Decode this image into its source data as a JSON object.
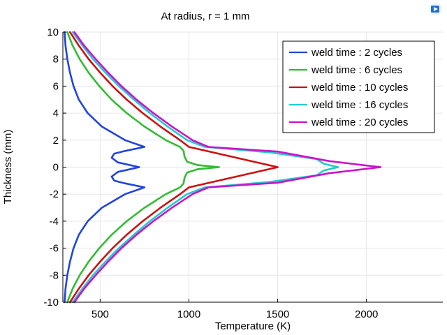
{
  "chart_data": {
    "type": "line",
    "title": "At radius, r = 1 mm",
    "xlabel": "Temperature (K)",
    "ylabel": "Thickness (mm)",
    "xlim": [
      290,
      2430
    ],
    "ylim": [
      -10,
      10
    ],
    "xticks": [
      500,
      1000,
      1500,
      2000
    ],
    "yticks": [
      -10,
      -8,
      -6,
      -4,
      -2,
      0,
      2,
      4,
      6,
      8,
      10
    ],
    "grid": true,
    "legend_position": "top-right",
    "series": [
      {
        "name": "weld time : 2 cycles",
        "color": "#2244dd",
        "points": [
          [
            300,
            10
          ],
          [
            305,
            9
          ],
          [
            315,
            8
          ],
          [
            330,
            7
          ],
          [
            350,
            6
          ],
          [
            380,
            5
          ],
          [
            430,
            4
          ],
          [
            510,
            3
          ],
          [
            640,
            2
          ],
          [
            750,
            1.5
          ],
          [
            640,
            1.2
          ],
          [
            580,
            1
          ],
          [
            565,
            0.7
          ],
          [
            600,
            0.35
          ],
          [
            720,
            0
          ],
          [
            600,
            -0.35
          ],
          [
            565,
            -0.7
          ],
          [
            580,
            -1
          ],
          [
            640,
            -1.2
          ],
          [
            750,
            -1.5
          ],
          [
            640,
            -2
          ],
          [
            510,
            -3
          ],
          [
            430,
            -4
          ],
          [
            380,
            -5
          ],
          [
            350,
            -6
          ],
          [
            330,
            -7
          ],
          [
            315,
            -8
          ],
          [
            305,
            -9
          ],
          [
            300,
            -10
          ]
        ]
      },
      {
        "name": "weld time : 6 cycles",
        "color": "#33bb33",
        "points": [
          [
            315,
            10
          ],
          [
            345,
            9
          ],
          [
            385,
            8
          ],
          [
            435,
            7
          ],
          [
            495,
            6
          ],
          [
            565,
            5
          ],
          [
            650,
            4
          ],
          [
            750,
            3
          ],
          [
            870,
            2
          ],
          [
            950,
            1.5
          ],
          [
            970,
            1.2
          ],
          [
            975,
            0.8
          ],
          [
            990,
            0.4
          ],
          [
            1050,
            0.15
          ],
          [
            1170,
            0
          ],
          [
            1050,
            -0.15
          ],
          [
            990,
            -0.4
          ],
          [
            975,
            -0.8
          ],
          [
            970,
            -1.2
          ],
          [
            950,
            -1.5
          ],
          [
            870,
            -2
          ],
          [
            750,
            -3
          ],
          [
            650,
            -4
          ],
          [
            565,
            -5
          ],
          [
            495,
            -6
          ],
          [
            435,
            -7
          ],
          [
            385,
            -8
          ],
          [
            345,
            -9
          ],
          [
            315,
            -10
          ]
        ]
      },
      {
        "name": "weld time : 10 cycles",
        "color": "#cc1111",
        "points": [
          [
            330,
            10
          ],
          [
            380,
            9
          ],
          [
            435,
            8
          ],
          [
            500,
            7
          ],
          [
            570,
            6
          ],
          [
            650,
            5
          ],
          [
            740,
            4
          ],
          [
            840,
            3
          ],
          [
            950,
            2
          ],
          [
            1000,
            1.5
          ],
          [
            1250,
            0.75
          ],
          [
            1500,
            0
          ],
          [
            1250,
            -0.75
          ],
          [
            1000,
            -1.5
          ],
          [
            950,
            -2
          ],
          [
            840,
            -3
          ],
          [
            740,
            -4
          ],
          [
            650,
            -5
          ],
          [
            570,
            -6
          ],
          [
            500,
            -7
          ],
          [
            435,
            -8
          ],
          [
            380,
            -9
          ],
          [
            330,
            -10
          ]
        ]
      },
      {
        "name": "weld time : 16 cycles",
        "color": "#22cccc",
        "points": [
          [
            345,
            10
          ],
          [
            400,
            9
          ],
          [
            460,
            8
          ],
          [
            530,
            7
          ],
          [
            605,
            6
          ],
          [
            690,
            5
          ],
          [
            780,
            4
          ],
          [
            880,
            3
          ],
          [
            990,
            2
          ],
          [
            1090,
            1.5
          ],
          [
            1450,
            1.1
          ],
          [
            1720,
            0.6
          ],
          [
            1760,
            0.25
          ],
          [
            1840,
            0
          ],
          [
            1760,
            -0.25
          ],
          [
            1720,
            -0.6
          ],
          [
            1450,
            -1.1
          ],
          [
            1090,
            -1.5
          ],
          [
            990,
            -2
          ],
          [
            880,
            -3
          ],
          [
            780,
            -4
          ],
          [
            690,
            -5
          ],
          [
            605,
            -6
          ],
          [
            530,
            -7
          ],
          [
            460,
            -8
          ],
          [
            400,
            -9
          ],
          [
            345,
            -10
          ]
        ]
      },
      {
        "name": "weld time : 20 cycles",
        "color": "#cc11cc",
        "points": [
          [
            355,
            10
          ],
          [
            410,
            9
          ],
          [
            475,
            8
          ],
          [
            545,
            7
          ],
          [
            620,
            6
          ],
          [
            705,
            5
          ],
          [
            800,
            4
          ],
          [
            905,
            3
          ],
          [
            1020,
            2
          ],
          [
            1110,
            1.5
          ],
          [
            1500,
            1.15
          ],
          [
            1790,
            0.45
          ],
          [
            2080,
            0
          ],
          [
            1790,
            -0.45
          ],
          [
            1500,
            -1.15
          ],
          [
            1110,
            -1.5
          ],
          [
            1020,
            -2
          ],
          [
            905,
            -3
          ],
          [
            800,
            -4
          ],
          [
            705,
            -5
          ],
          [
            620,
            -6
          ],
          [
            545,
            -7
          ],
          [
            475,
            -8
          ],
          [
            410,
            -9
          ],
          [
            355,
            -10
          ]
        ]
      }
    ]
  },
  "toolbar": {
    "icon": "comsol-logo-icon"
  }
}
